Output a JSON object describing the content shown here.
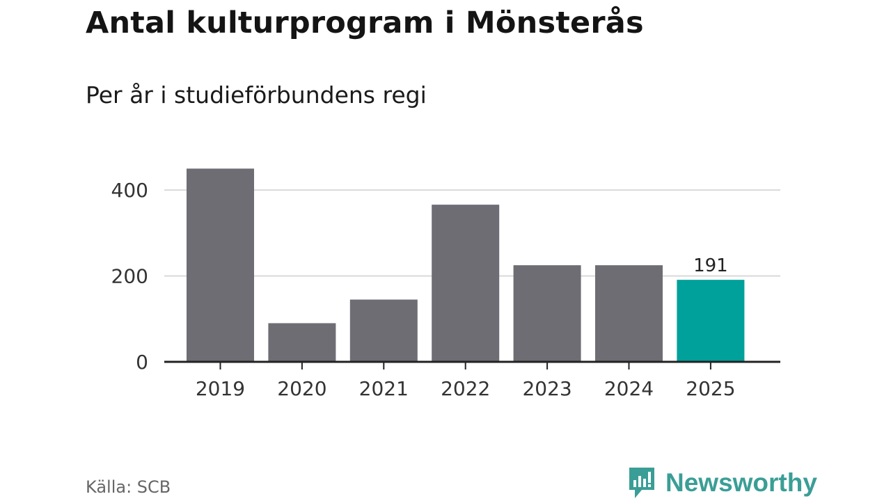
{
  "title": "Antal kulturprogram i Mönsterås",
  "subtitle": "Per år i studieförbundens regi",
  "source": "Källa: SCB",
  "brand": "Newsworthy",
  "colors": {
    "bar": "#6e6d73",
    "highlight": "#00a19a",
    "grid": "#d9d9d9",
    "axis": "#222222",
    "brand": "#3a9e96"
  },
  "chart_data": {
    "type": "bar",
    "categories": [
      "2019",
      "2020",
      "2021",
      "2022",
      "2023",
      "2024",
      "2025"
    ],
    "values": [
      450,
      90,
      145,
      366,
      225,
      225,
      191
    ],
    "highlight_index": 6,
    "data_labels": {
      "6": "191"
    },
    "yticks": [
      0,
      200,
      400
    ],
    "ylim": [
      0,
      450
    ],
    "grid": true,
    "xlabel": "",
    "ylabel": ""
  }
}
